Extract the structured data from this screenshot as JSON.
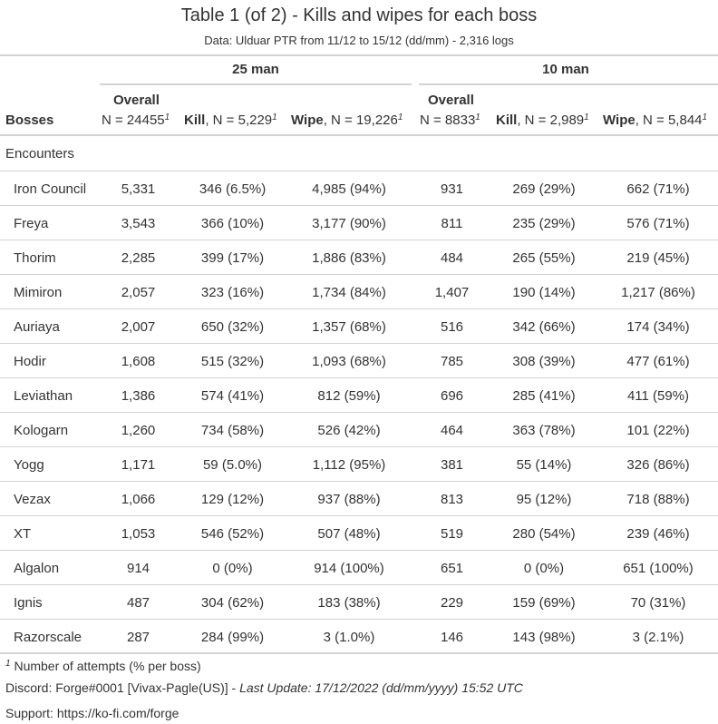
{
  "title": "Table 1 (of 2) - Kills and wipes for each boss",
  "subtitle": "Data: Ulduar PTR from 11/12 to 15/12 (dd/mm) - 2,316 logs",
  "spanners": {
    "man25": "25 man",
    "man10": "10 man"
  },
  "headers": {
    "bosses": "Bosses",
    "overall_label": "Overall",
    "overall25_n": "N = 24455",
    "kill_label": "Kill",
    "kill25_n": ", N = 5,229",
    "wipe_label": "Wipe",
    "wipe25_n": ", N = 19,226",
    "overall10_n": "N = 8833",
    "kill10_n": ", N = 2,989",
    "wipe10_n": ", N = 5,844",
    "footnote_mark": "1"
  },
  "group_label": "Encounters",
  "rows": [
    {
      "boss": "Iron Council",
      "o25": "5,331",
      "k25": "346 (6.5%)",
      "w25": "4,985 (94%)",
      "o10": "931",
      "k10": "269 (29%)",
      "w10": "662 (71%)"
    },
    {
      "boss": "Freya",
      "o25": "3,543",
      "k25": "366 (10%)",
      "w25": "3,177 (90%)",
      "o10": "811",
      "k10": "235 (29%)",
      "w10": "576 (71%)"
    },
    {
      "boss": "Thorim",
      "o25": "2,285",
      "k25": "399 (17%)",
      "w25": "1,886 (83%)",
      "o10": "484",
      "k10": "265 (55%)",
      "w10": "219 (45%)"
    },
    {
      "boss": "Mimiron",
      "o25": "2,057",
      "k25": "323 (16%)",
      "w25": "1,734 (84%)",
      "o10": "1,407",
      "k10": "190 (14%)",
      "w10": "1,217 (86%)"
    },
    {
      "boss": "Auriaya",
      "o25": "2,007",
      "k25": "650 (32%)",
      "w25": "1,357 (68%)",
      "o10": "516",
      "k10": "342 (66%)",
      "w10": "174 (34%)"
    },
    {
      "boss": "Hodir",
      "o25": "1,608",
      "k25": "515 (32%)",
      "w25": "1,093 (68%)",
      "o10": "785",
      "k10": "308 (39%)",
      "w10": "477 (61%)"
    },
    {
      "boss": "Leviathan",
      "o25": "1,386",
      "k25": "574 (41%)",
      "w25": "812 (59%)",
      "o10": "696",
      "k10": "285 (41%)",
      "w10": "411 (59%)"
    },
    {
      "boss": "Kologarn",
      "o25": "1,260",
      "k25": "734 (58%)",
      "w25": "526 (42%)",
      "o10": "464",
      "k10": "363 (78%)",
      "w10": "101 (22%)"
    },
    {
      "boss": "Yogg",
      "o25": "1,171",
      "k25": "59 (5.0%)",
      "w25": "1,112 (95%)",
      "o10": "381",
      "k10": "55 (14%)",
      "w10": "326 (86%)"
    },
    {
      "boss": "Vezax",
      "o25": "1,066",
      "k25": "129 (12%)",
      "w25": "937 (88%)",
      "o10": "813",
      "k10": "95 (12%)",
      "w10": "718 (88%)"
    },
    {
      "boss": "XT",
      "o25": "1,053",
      "k25": "546 (52%)",
      "w25": "507 (48%)",
      "o10": "519",
      "k10": "280 (54%)",
      "w10": "239 (46%)"
    },
    {
      "boss": "Algalon",
      "o25": "914",
      "k25": "0 (0%)",
      "w25": "914 (100%)",
      "o10": "651",
      "k10": "0 (0%)",
      "w10": "651 (100%)"
    },
    {
      "boss": "Ignis",
      "o25": "487",
      "k25": "304 (62%)",
      "w25": "183 (38%)",
      "o10": "229",
      "k10": "159 (69%)",
      "w10": "70 (31%)"
    },
    {
      "boss": "Razorscale",
      "o25": "287",
      "k25": "284 (99%)",
      "w25": "3 (1.0%)",
      "o10": "146",
      "k10": "143 (98%)",
      "w10": "3 (2.1%)"
    }
  ],
  "footnotes": {
    "mark": "1",
    "note": "Number of attempts (% per boss)",
    "discord": "Discord: Forge#0001 [Vivax-Pagle(US)] - ",
    "last_update": "Last Update: 17/12/2022 (dd/mm/yyyy) 15:52 UTC",
    "support": "Support: https://ko-fi.com/forge"
  }
}
